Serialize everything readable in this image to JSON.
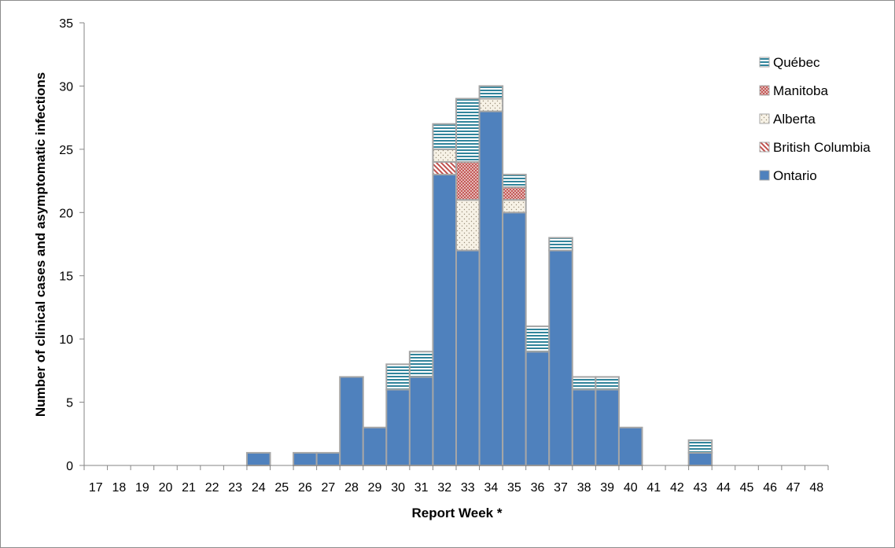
{
  "chart_data": {
    "type": "bar",
    "stacked": true,
    "title": "",
    "xlabel": "Report Week *",
    "ylabel": "Number of clinical cases and asymptomatic infections",
    "ylim": [
      0,
      35
    ],
    "yticks": [
      0,
      5,
      10,
      15,
      20,
      25,
      30,
      35
    ],
    "grid": false,
    "legend_position": "top-right",
    "categories": [
      "17",
      "18",
      "19",
      "20",
      "21",
      "22",
      "23",
      "24",
      "25",
      "26",
      "27",
      "28",
      "29",
      "30",
      "31",
      "32",
      "33",
      "34",
      "35",
      "36",
      "37",
      "38",
      "39",
      "40",
      "41",
      "42",
      "43",
      "44",
      "45",
      "46",
      "47",
      "48"
    ],
    "series": [
      {
        "name": "Ontario",
        "color": "#4f81bd",
        "pattern": "solid",
        "values": [
          0,
          0,
          0,
          0,
          0,
          0,
          0,
          1,
          0,
          1,
          1,
          7,
          3,
          6,
          7,
          23,
          17,
          28,
          20,
          9,
          17,
          6,
          6,
          3,
          0,
          0,
          1,
          0,
          0,
          0,
          0,
          0
        ]
      },
      {
        "name": "British Columbia",
        "color": "#c0504d",
        "pattern": "diagonal-stripes",
        "values": [
          0,
          0,
          0,
          0,
          0,
          0,
          0,
          0,
          0,
          0,
          0,
          0,
          0,
          0,
          0,
          1,
          0,
          0,
          0,
          0,
          0,
          0,
          0,
          0,
          0,
          0,
          0,
          0,
          0,
          0,
          0,
          0
        ]
      },
      {
        "name": "Alberta",
        "color": "#f4eee0",
        "pattern": "dots",
        "values": [
          0,
          0,
          0,
          0,
          0,
          0,
          0,
          0,
          0,
          0,
          0,
          0,
          0,
          0,
          0,
          1,
          4,
          1,
          1,
          0,
          0,
          0,
          0,
          0,
          0,
          0,
          0,
          0,
          0,
          0,
          0,
          0
        ]
      },
      {
        "name": "Manitoba",
        "color": "#d99694",
        "pattern": "crosshatch",
        "values": [
          0,
          0,
          0,
          0,
          0,
          0,
          0,
          0,
          0,
          0,
          0,
          0,
          0,
          0,
          0,
          0,
          3,
          0,
          1,
          0,
          0,
          0,
          0,
          0,
          0,
          0,
          0,
          0,
          0,
          0,
          0,
          0
        ]
      },
      {
        "name": "Québec",
        "color": "#31849b",
        "pattern": "horizontal-stripes",
        "values": [
          0,
          0,
          0,
          0,
          0,
          0,
          0,
          0,
          0,
          0,
          0,
          0,
          0,
          2,
          2,
          2,
          5,
          1,
          1,
          2,
          1,
          1,
          1,
          0,
          0,
          0,
          1,
          0,
          0,
          0,
          0,
          0
        ]
      }
    ],
    "legend_order": [
      "Québec",
      "Manitoba",
      "Alberta",
      "British Columbia",
      "Ontario"
    ]
  }
}
